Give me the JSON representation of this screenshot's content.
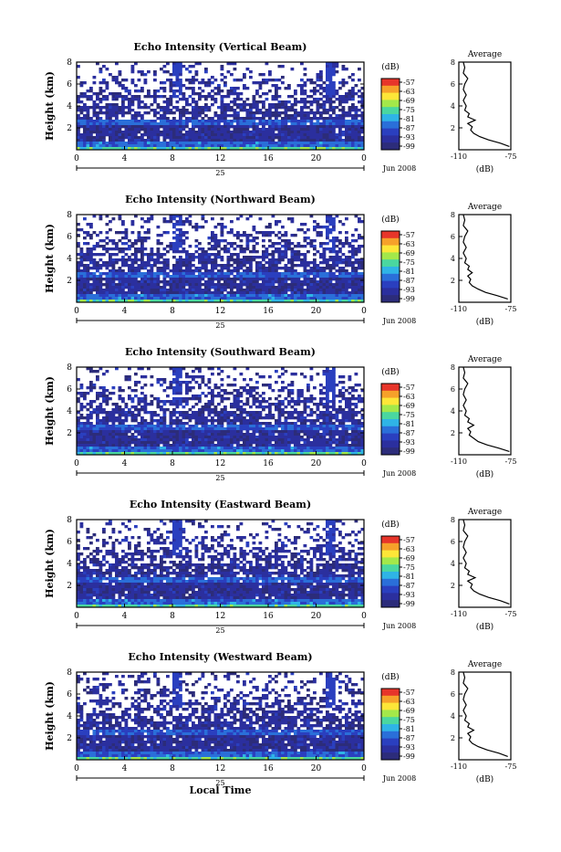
{
  "figure": {
    "x_axis_title": "Local Time",
    "date_day_label": "25",
    "date_month_label": "Jun 2008",
    "colorbar_unit_label": "(dB)",
    "colorbar_ticks": [
      "-57",
      "-63",
      "-69",
      "-75",
      "-81",
      "-87",
      "-93",
      "-99"
    ],
    "colorbar_colors": [
      "#e7352a",
      "#f6a12a",
      "#fde638",
      "#a3e84a",
      "#4ad7a0",
      "#2fb4e6",
      "#2a6fd9",
      "#2a3fbf",
      "#2b2f9e",
      "#2c2c7a"
    ],
    "height_axis_label": "Height (km)",
    "profile_title": "Average",
    "profile_xlabel": "(dB)",
    "profile_xticks": [
      "-110",
      "-75"
    ],
    "height_ticks": [
      "2",
      "4",
      "6",
      "8"
    ],
    "time_ticks": [
      "0",
      "4",
      "8",
      "12",
      "16",
      "20",
      "0"
    ]
  },
  "chart_data": [
    {
      "type": "heatmap",
      "title": "Echo Intensity (Vertical Beam)",
      "xlabel": "",
      "ylabel": "Height (km)",
      "x_range_hours": [
        0,
        24
      ],
      "y_range_km": [
        0,
        8
      ],
      "color_range_db": [
        -99,
        -57
      ],
      "profile": {
        "title": "Average",
        "xlabel": "(dB)",
        "xlim": [
          -110,
          -75
        ],
        "height_km": [
          0.3,
          0.6,
          0.9,
          1.2,
          1.5,
          1.8,
          2.1,
          2.4,
          2.7,
          3.0,
          3.3,
          3.6,
          4.0,
          4.5,
          5.0,
          5.5,
          6.0,
          6.5,
          7.0,
          7.5,
          8.0
        ],
        "db": [
          -76,
          -82,
          -90,
          -96,
          -100,
          -102,
          -101,
          -104,
          -99,
          -104,
          -103,
          -106,
          -105,
          -107,
          -105,
          -107,
          -106,
          -104,
          -107,
          -106,
          -107
        ]
      }
    },
    {
      "type": "heatmap",
      "title": "Echo Intensity (Northward Beam)",
      "xlabel": "",
      "ylabel": "Height (km)",
      "x_range_hours": [
        0,
        24
      ],
      "y_range_km": [
        0,
        8
      ],
      "color_range_db": [
        -99,
        -57
      ],
      "profile": {
        "title": "Average",
        "xlabel": "(dB)",
        "xlim": [
          -110,
          -75
        ],
        "height_km": [
          0.3,
          0.6,
          0.9,
          1.2,
          1.5,
          1.8,
          2.1,
          2.4,
          2.7,
          3.0,
          3.3,
          3.6,
          4.0,
          4.5,
          5.0,
          5.5,
          6.0,
          6.5,
          7.0,
          7.5,
          8.0
        ],
        "db": [
          -77,
          -84,
          -92,
          -97,
          -101,
          -103,
          -102,
          -104,
          -101,
          -104,
          -103,
          -106,
          -105,
          -107,
          -105,
          -107,
          -106,
          -104,
          -107,
          -106,
          -107
        ]
      }
    },
    {
      "type": "heatmap",
      "title": "Echo Intensity (Southward Beam)",
      "xlabel": "",
      "ylabel": "Height (km)",
      "x_range_hours": [
        0,
        24
      ],
      "y_range_km": [
        0,
        8
      ],
      "color_range_db": [
        -99,
        -57
      ],
      "profile": {
        "title": "Average",
        "xlabel": "(dB)",
        "xlim": [
          -110,
          -75
        ],
        "height_km": [
          0.3,
          0.6,
          0.9,
          1.2,
          1.5,
          1.8,
          2.1,
          2.4,
          2.7,
          3.0,
          3.3,
          3.6,
          4.0,
          4.5,
          5.0,
          5.5,
          6.0,
          6.5,
          7.0,
          7.5,
          8.0
        ],
        "db": [
          -76,
          -83,
          -91,
          -97,
          -100,
          -103,
          -102,
          -104,
          -100,
          -104,
          -103,
          -106,
          -105,
          -107,
          -105,
          -107,
          -106,
          -104,
          -107,
          -106,
          -107
        ]
      }
    },
    {
      "type": "heatmap",
      "title": "Echo Intensity (Eastward Beam)",
      "xlabel": "",
      "ylabel": "Height (km)",
      "x_range_hours": [
        0,
        24
      ],
      "y_range_km": [
        0,
        8
      ],
      "color_range_db": [
        -99,
        -57
      ],
      "profile": {
        "title": "Average",
        "xlabel": "(dB)",
        "xlim": [
          -110,
          -75
        ],
        "height_km": [
          0.3,
          0.6,
          0.9,
          1.2,
          1.5,
          1.8,
          2.1,
          2.4,
          2.7,
          3.0,
          3.3,
          3.6,
          4.0,
          4.5,
          5.0,
          5.5,
          6.0,
          6.5,
          7.0,
          7.5,
          8.0
        ],
        "db": [
          -76,
          -82,
          -90,
          -96,
          -100,
          -102,
          -101,
          -104,
          -99,
          -104,
          -103,
          -106,
          -105,
          -107,
          -105,
          -107,
          -106,
          -104,
          -107,
          -106,
          -107
        ]
      }
    },
    {
      "type": "heatmap",
      "title": "Echo Intensity (Westward Beam)",
      "xlabel": "Local Time",
      "ylabel": "Height (km)",
      "x_range_hours": [
        0,
        24
      ],
      "y_range_km": [
        0,
        8
      ],
      "color_range_db": [
        -99,
        -57
      ],
      "profile": {
        "title": "Average",
        "xlabel": "(dB)",
        "xlim": [
          -110,
          -75
        ],
        "height_km": [
          0.3,
          0.6,
          0.9,
          1.2,
          1.5,
          1.8,
          2.1,
          2.4,
          2.7,
          3.0,
          3.3,
          3.6,
          4.0,
          4.5,
          5.0,
          5.5,
          6.0,
          6.5,
          7.0,
          7.5,
          8.0
        ],
        "db": [
          -77,
          -83,
          -91,
          -97,
          -101,
          -103,
          -102,
          -104,
          -100,
          -104,
          -103,
          -106,
          -105,
          -107,
          -105,
          -107,
          -106,
          -104,
          -107,
          -106,
          -107
        ]
      }
    }
  ]
}
